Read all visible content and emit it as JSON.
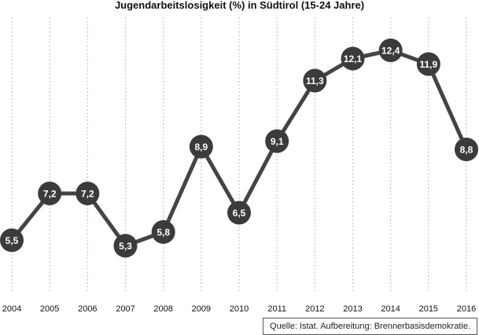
{
  "chart_data": {
    "type": "line",
    "title": "Jugendarbeitslosigkeit (%) in Südtirol (15-24 Jahre)",
    "xlabel": "",
    "ylabel": "",
    "categories": [
      "2004",
      "2005",
      "2006",
      "2007",
      "2008",
      "2009",
      "2010",
      "2011",
      "2012",
      "2013",
      "2014",
      "2015",
      "2016"
    ],
    "series": [
      {
        "values": [
          5.5,
          7.2,
          7.2,
          5.3,
          5.8,
          8.9,
          6.5,
          9.1,
          11.3,
          12.1,
          12.4,
          11.9,
          8.8
        ],
        "labels": [
          "5,5",
          "7,2",
          "7,2",
          "5,3",
          "5,8",
          "8,9",
          "6,5",
          "9,1",
          "11,3",
          "12,1",
          "12,4",
          "11,9",
          "8,8"
        ]
      }
    ],
    "ylim": [
      3.2,
      13.6
    ],
    "gridlines": "vertical dotted",
    "colors": {
      "line": "#444444",
      "marker": "#3b3b3b",
      "label": "#ffffff",
      "grid": "#b5b5b5"
    }
  },
  "source": "Quelle: Istat. Aufbereitung: Brennerbasisdemokratie."
}
